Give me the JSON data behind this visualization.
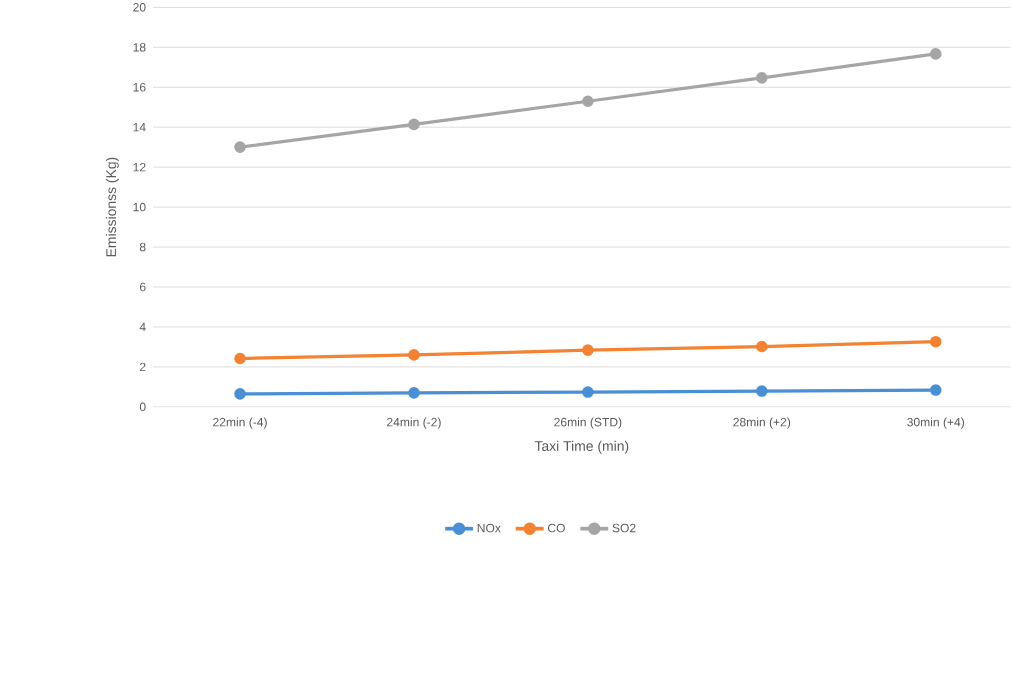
{
  "chart_data": {
    "type": "line",
    "xlabel": "Taxi Time (min)",
    "ylabel": "Emissionss (Kg)",
    "categories": [
      "22min (-4)",
      "24min (-2)",
      "26min (STD)",
      "28min (+2)",
      "30min (+4)"
    ],
    "series": [
      {
        "name": "NOx",
        "color": "#4a8fd4",
        "values": [
          0.65,
          0.7,
          0.74,
          0.79,
          0.84
        ]
      },
      {
        "name": "CO",
        "color": "#f38232",
        "values": [
          2.42,
          2.6,
          2.84,
          3.02,
          3.26
        ]
      },
      {
        "name": "SO2",
        "color": "#a5a5a5",
        "values": [
          13.0,
          14.14,
          15.3,
          16.47,
          17.67
        ]
      }
    ],
    "ylim": [
      0,
      20
    ],
    "yticks": [
      0,
      2,
      4,
      6,
      8,
      10,
      12,
      14,
      16,
      18,
      20
    ],
    "grid": "y",
    "legend": "bottom",
    "marker": "circle",
    "line_style": "solid"
  }
}
